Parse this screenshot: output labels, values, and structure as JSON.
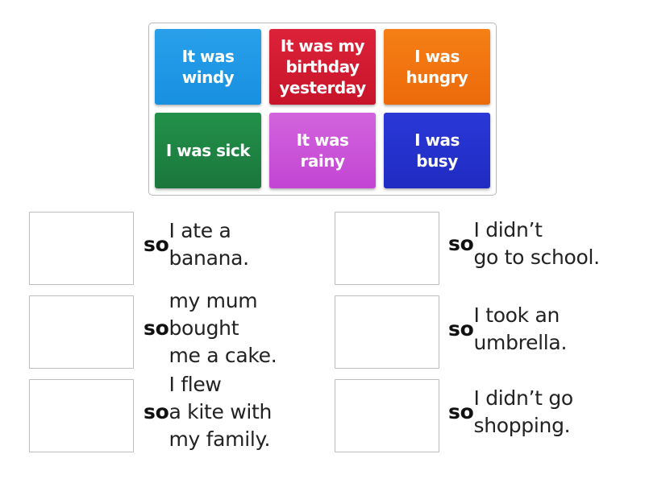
{
  "tiles": [
    {
      "label": "It was\nwindy",
      "color": "#1e97e6"
    },
    {
      "label": "It was my\nbirthday\nyesterday",
      "color": "#d6182f"
    },
    {
      "label": "I was\nhungry",
      "color": "#f27510"
    },
    {
      "label": "I was sick",
      "color": "#1f8a45"
    },
    {
      "label": "It was\nrainy",
      "color": "#cc55d9"
    },
    {
      "label": "I was\nbusy",
      "color": "#2330cf"
    }
  ],
  "targets": [
    {
      "keyword": "so",
      "text": " I ate a\nbanana."
    },
    {
      "keyword": "so",
      "text": " my mum\nbought\nme a cake."
    },
    {
      "keyword": "so",
      "text": " I flew\na kite with\nmy family."
    },
    {
      "keyword": "so",
      "text": " I didn’t\ngo to school."
    },
    {
      "keyword": "so",
      "text": " I took an\numbrella."
    },
    {
      "keyword": "so",
      "text": " I didn’t go\nshopping."
    }
  ]
}
